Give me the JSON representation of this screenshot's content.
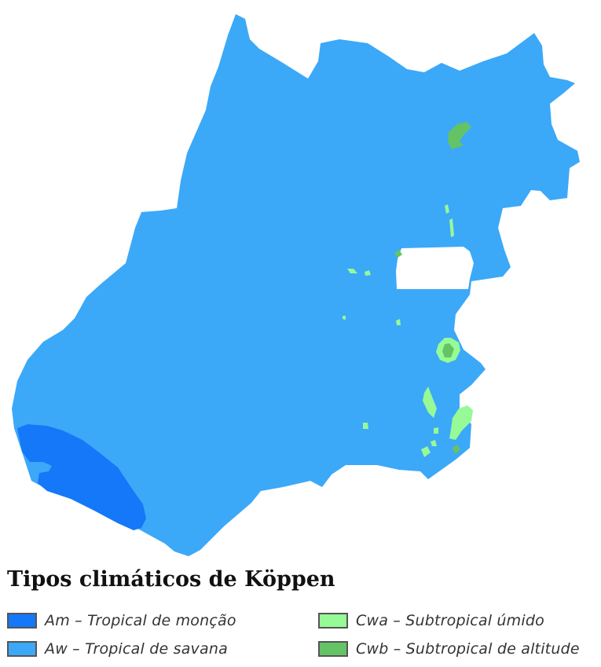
{
  "legend": {
    "title": "Tipos climáticos de Köppen",
    "items": [
      {
        "key": "am",
        "label": "Am – Tropical de monção",
        "color": "#1478f8"
      },
      {
        "key": "aw",
        "label": "Aw – Tropical de savana",
        "color": "#3ca8f8"
      },
      {
        "key": "cwa",
        "label": "Cwa – Subtropical úmido",
        "color": "#96fa96"
      },
      {
        "key": "cwb",
        "label": "Cwb – Subtropical de altitude",
        "color": "#64c364"
      }
    ]
  },
  "map": {
    "land_color": "#3ca8f8",
    "excluded_area_color": "#ffffff"
  }
}
